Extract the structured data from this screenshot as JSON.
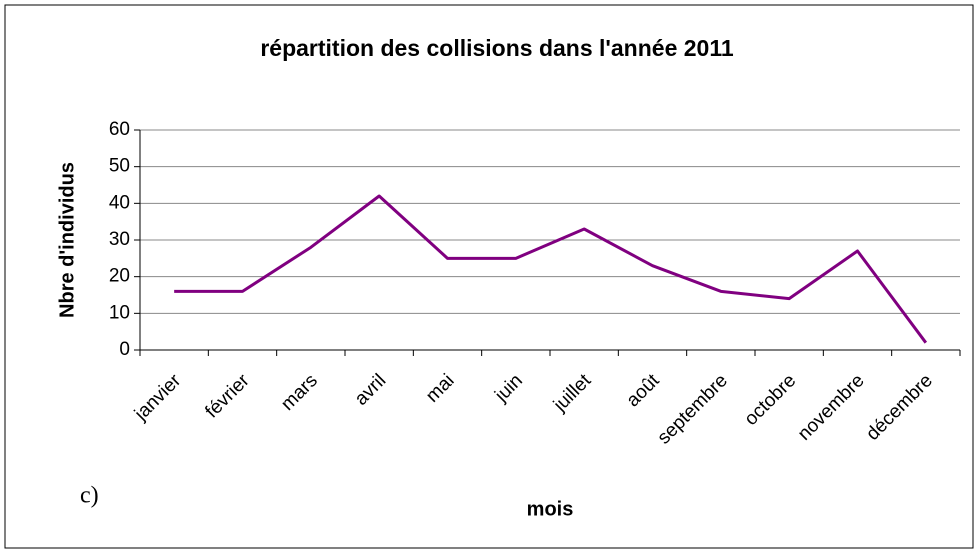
{
  "chart_data": {
    "type": "line",
    "title": "répartition des collisions dans l'année 2011",
    "x_label": "mois",
    "y_label": "Nbre d'individus",
    "annotation": "c)",
    "categories": [
      "janvier",
      "février",
      "mars",
      "avril",
      "mai",
      "juin",
      "juillet",
      "août",
      "septembre",
      "octobre",
      "novembre",
      "décembre"
    ],
    "values": [
      16,
      16,
      28,
      42,
      25,
      25,
      33,
      23,
      16,
      14,
      27,
      2
    ],
    "color": "#800080",
    "ylim": [
      0,
      60
    ],
    "yticks": [
      0,
      10,
      20,
      30,
      40,
      50,
      60
    ],
    "grid": true
  }
}
